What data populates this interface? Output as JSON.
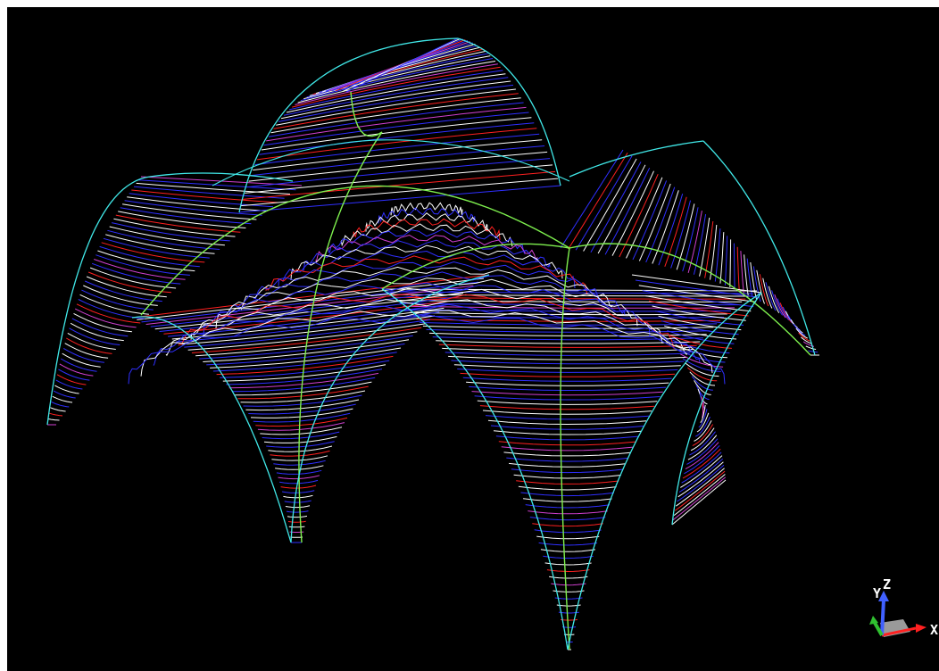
{
  "viewport": {
    "background": "#000000"
  },
  "model": {
    "type": "contour-wireframe surface (vaulted shell with six legs)",
    "contour_colors": [
      "#ffffff",
      "#2f2fff",
      "#ff2020",
      "#d040d0"
    ],
    "rib_color": "#7ef04e",
    "edge_color": "#40e8e8"
  },
  "axis_triad": {
    "icon": "xyz-orientation-triad",
    "labels": {
      "z": "Z",
      "y": "Y",
      "x": "X"
    },
    "colors": {
      "z": "#4060ff",
      "y": "#30c030",
      "x": "#ff2020",
      "base": "#a0a0a0"
    }
  }
}
